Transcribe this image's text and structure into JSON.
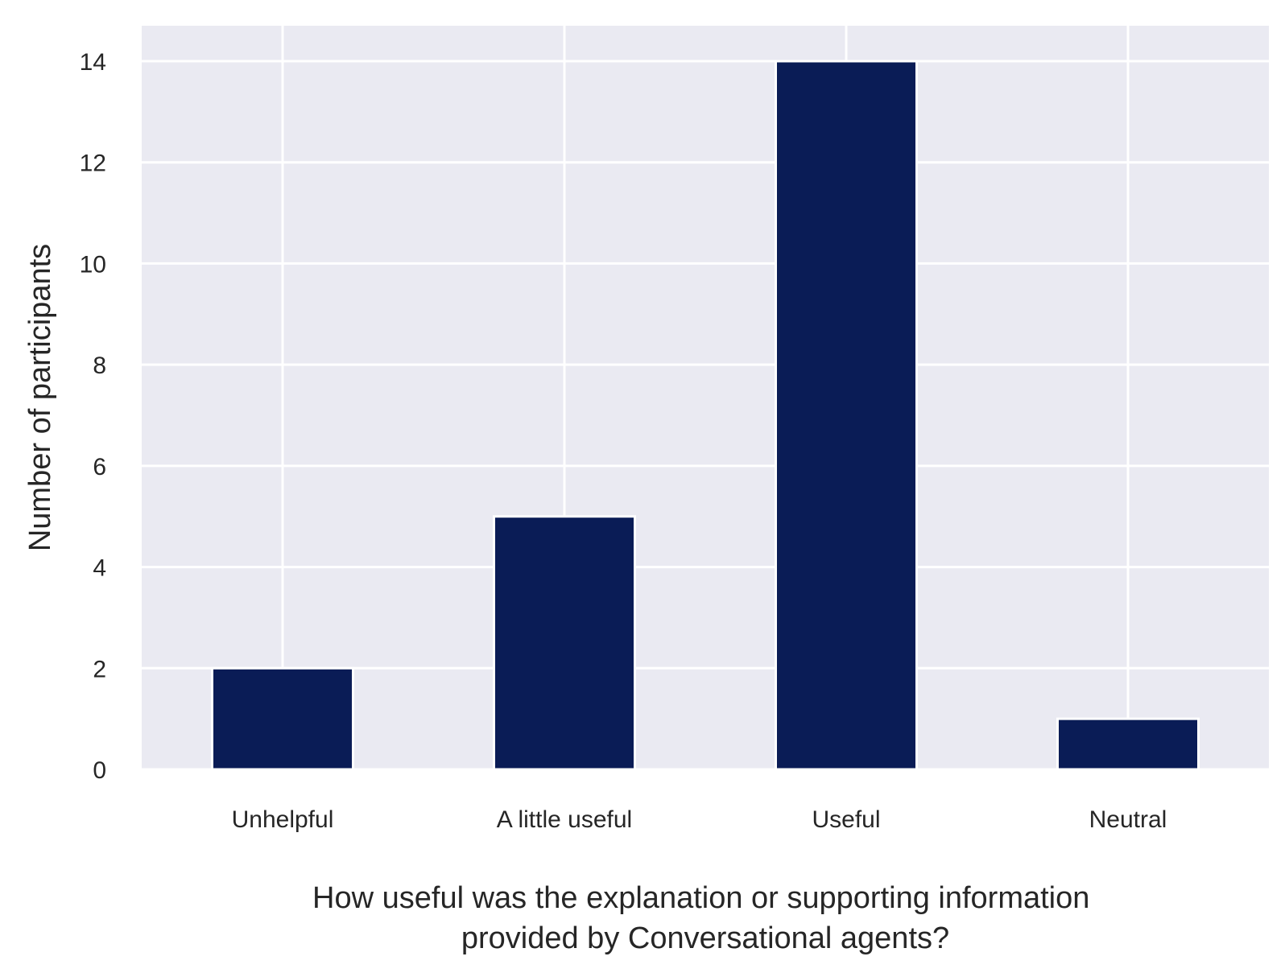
{
  "chart_data": {
    "type": "bar",
    "categories": [
      "Unhelpful",
      "A little useful",
      "Useful",
      "Neutral"
    ],
    "values": [
      2,
      5,
      14,
      1
    ],
    "title": "",
    "xlabel_lines": [
      "How useful was the explanation or supporting information",
      "provided by Conversational agents?"
    ],
    "ylabel": "Number of participants",
    "ylim": [
      0,
      14.7
    ],
    "yticks": [
      0,
      2,
      4,
      6,
      8,
      10,
      12,
      14
    ],
    "grid": true,
    "bar_color": "#0a1c56",
    "background_color": "#eaeaf2",
    "grid_color": "#ffffff"
  }
}
